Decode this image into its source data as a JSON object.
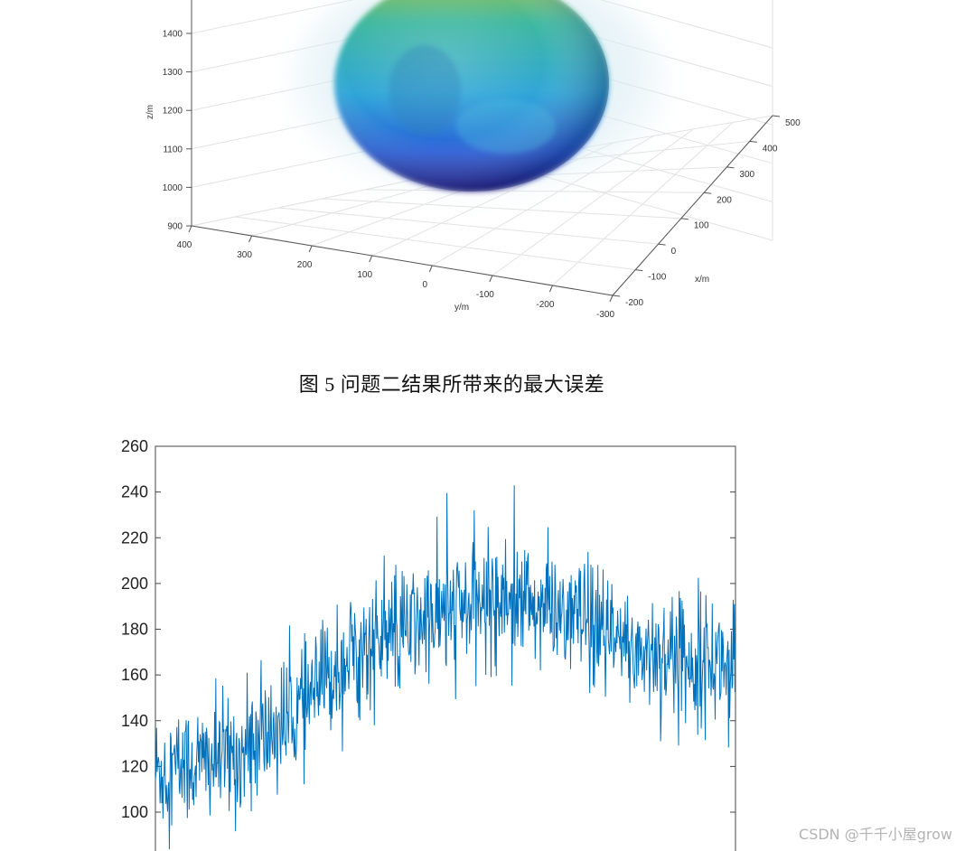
{
  "caption": "图  5 问题二结果所带来的最大误差",
  "watermark": "CSDN @千千小屋grow",
  "chart_data": [
    {
      "type": "surface3d",
      "zlabel": "z/m",
      "ylabel": "y/m",
      "xlabel": "x/m",
      "z_ticks": [
        900,
        1000,
        1100,
        1200,
        1300,
        1400
      ],
      "y_ticks": [
        400,
        300,
        200,
        100,
        0,
        -100,
        -200,
        -300
      ],
      "x_ticks": [
        -200,
        -100,
        0,
        100,
        200,
        300,
        400,
        500
      ],
      "colormap": [
        "#2b1f8a",
        "#2a5fd8",
        "#2fa6d8",
        "#3fb8a0",
        "#9fc24a"
      ],
      "grid": true
    },
    {
      "type": "line",
      "ylim": [
        85,
        260
      ],
      "y_ticks": [
        100,
        120,
        140,
        160,
        180,
        200,
        220,
        240,
        260
      ],
      "line_color": "#0072bd",
      "grid": false,
      "series": [
        {
          "n": 1000,
          "trend": [
            [
              0,
              118
            ],
            [
              150,
              125
            ],
            [
              250,
              145
            ],
            [
              330,
              168
            ],
            [
              450,
              182
            ],
            [
              600,
              195
            ],
            [
              720,
              185
            ],
            [
              800,
              172
            ],
            [
              1000,
              165
            ]
          ],
          "noise_sd": 18
        }
      ]
    }
  ]
}
